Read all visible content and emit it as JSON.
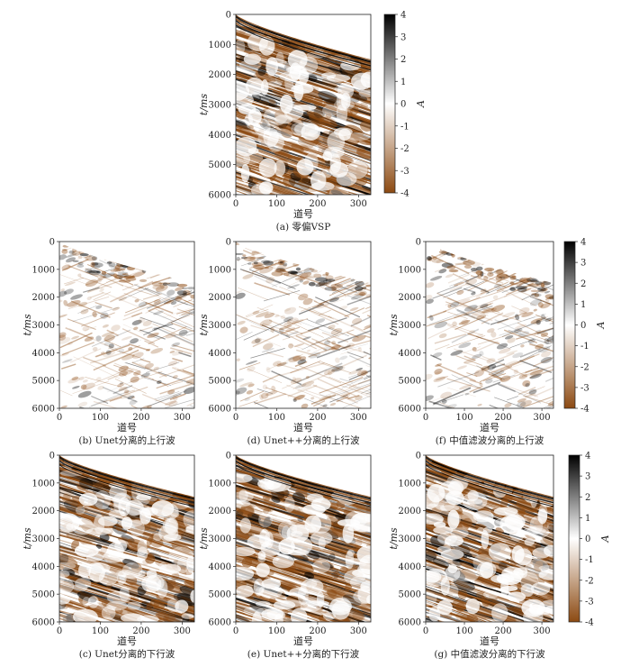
{
  "chart_data": [
    {
      "type": "heatmap",
      "id": "a",
      "caption": "(a) 零偏VSP",
      "ylabel": "t/ms",
      "xlabel": "道号",
      "ylim": [
        0,
        6000
      ],
      "xlim": [
        0,
        330
      ],
      "yticks": [
        "0",
        "1000",
        "2000",
        "3000",
        "4000",
        "5000",
        "6000"
      ],
      "xticks": [
        "0",
        "100",
        "200",
        "300"
      ],
      "content": "full",
      "first_arrival_ms": {
        "trace_0": 0,
        "trace_330": 1500
      }
    },
    {
      "type": "heatmap",
      "id": "b",
      "caption": "(b) Unet分离的上行波",
      "ylabel": "t/ms",
      "xlabel": "道号",
      "ylim": [
        0,
        6000
      ],
      "xlim": [
        0,
        330
      ],
      "yticks": [
        "0",
        "1000",
        "2000",
        "3000",
        "4000",
        "5000",
        "6000"
      ],
      "xticks": [
        "0",
        "100",
        "200",
        "300"
      ],
      "content": "up",
      "first_arrival_ms": {
        "trace_0": 0,
        "trace_330": 1500
      }
    },
    {
      "type": "heatmap",
      "id": "d",
      "caption": "(d) Unet++分离的上行波",
      "ylabel": "t/ms",
      "xlabel": "道号",
      "ylim": [
        0,
        6000
      ],
      "xlim": [
        0,
        330
      ],
      "yticks": [
        "0",
        "1000",
        "2000",
        "3000",
        "4000",
        "5000",
        "6000"
      ],
      "xticks": [
        "0",
        "100",
        "200",
        "300"
      ],
      "content": "up",
      "first_arrival_ms": {
        "trace_0": 0,
        "trace_330": 1500
      }
    },
    {
      "type": "heatmap",
      "id": "f",
      "caption": "(f) 中值滤波分离的上行波",
      "ylabel": "t/ms",
      "xlabel": "道号",
      "ylim": [
        0,
        6000
      ],
      "xlim": [
        0,
        330
      ],
      "yticks": [
        "0",
        "1000",
        "2000",
        "3000",
        "4000",
        "5000",
        "6000"
      ],
      "xticks": [
        "0",
        "100",
        "200",
        "300"
      ],
      "content": "up",
      "first_arrival_ms": {
        "trace_0": 0,
        "trace_330": 1500
      }
    },
    {
      "type": "heatmap",
      "id": "c",
      "caption": "(c) Unet分离的下行波",
      "ylabel": "t/ms",
      "xlabel": "道号",
      "ylim": [
        0,
        6000
      ],
      "xlim": [
        0,
        330
      ],
      "yticks": [
        "0",
        "1000",
        "2000",
        "3000",
        "4000",
        "5000",
        "6000"
      ],
      "xticks": [
        "0",
        "100",
        "200",
        "300"
      ],
      "content": "down",
      "first_arrival_ms": {
        "trace_0": 0,
        "trace_330": 1500
      }
    },
    {
      "type": "heatmap",
      "id": "e",
      "caption": "(e) Unet++分离的下行波",
      "ylabel": "t/ms",
      "xlabel": "道号",
      "ylim": [
        0,
        6000
      ],
      "xlim": [
        0,
        330
      ],
      "yticks": [
        "0",
        "1000",
        "2000",
        "3000",
        "4000",
        "5000",
        "6000"
      ],
      "xticks": [
        "0",
        "100",
        "200",
        "300"
      ],
      "content": "down",
      "first_arrival_ms": {
        "trace_0": 0,
        "trace_330": 1500
      }
    },
    {
      "type": "heatmap",
      "id": "g",
      "caption": "(g) 中值滤波分离的下行波",
      "ylabel": "t/ms",
      "xlabel": "道号",
      "ylim": [
        0,
        6000
      ],
      "xlim": [
        0,
        330
      ],
      "yticks": [
        "0",
        "1000",
        "2000",
        "3000",
        "4000",
        "5000",
        "6000"
      ],
      "xticks": [
        "0",
        "100",
        "200",
        "300"
      ],
      "content": "down",
      "first_arrival_ms": {
        "trace_0": 0,
        "trace_330": 1500
      }
    }
  ],
  "colorbars": [
    {
      "id": "cb1",
      "label": "A",
      "ticks": [
        "4",
        "3",
        "2",
        "1",
        "0",
        "-1",
        "-2",
        "-3",
        "-4"
      ],
      "range": [
        -4,
        4
      ]
    },
    {
      "id": "cb2",
      "label": "A",
      "ticks": [
        "4",
        "3",
        "2",
        "1",
        "0",
        "-1",
        "-2",
        "-3",
        "-4"
      ],
      "range": [
        -4,
        4
      ]
    },
    {
      "id": "cb3",
      "label": "A",
      "ticks": [
        "4",
        "3",
        "2",
        "1",
        "0",
        "-1",
        "-2",
        "-3",
        "-4"
      ],
      "range": [
        -4,
        4
      ]
    }
  ],
  "colors": {
    "positive": "#000000",
    "zero": "#ffffff",
    "negative": "#8c4a12"
  }
}
